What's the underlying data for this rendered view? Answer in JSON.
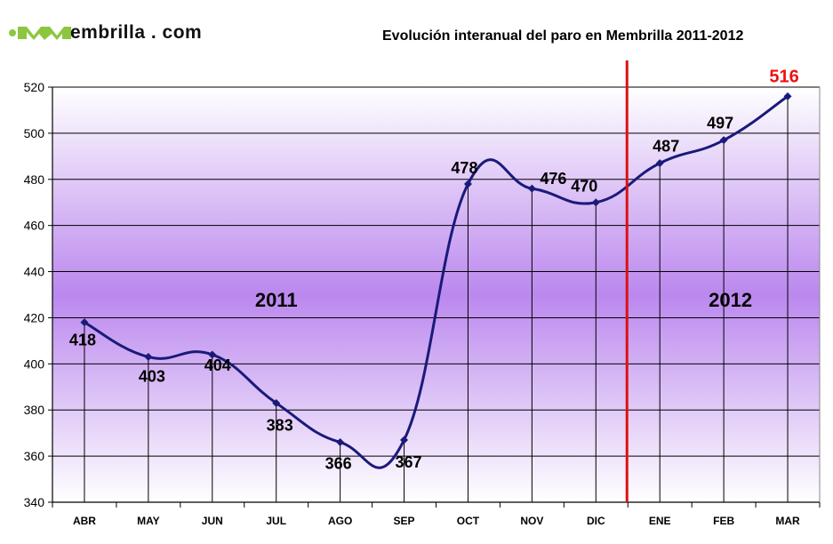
{
  "logo": {
    "text": "embrilla . com",
    "mark_icon": "green-m-logo-icon",
    "mark_color": "#8cc63f"
  },
  "chart_data": {
    "type": "line",
    "title": "Evolución interanual del paro en Membrilla 2011-2012",
    "xlabel": "",
    "ylabel": "",
    "categories": [
      "ABR",
      "MAY",
      "JUN",
      "JUL",
      "AGO",
      "SEP",
      "OCT",
      "NOV",
      "DIC",
      "ENE",
      "FEB",
      "MAR"
    ],
    "series": [
      {
        "values": [
          418,
          403,
          404,
          383,
          366,
          367,
          478,
          476,
          470,
          487,
          497,
          516
        ]
      }
    ],
    "data_labels": [
      "418",
      "403",
      "404",
      "383",
      "366",
      "367",
      "478",
      "476",
      "470",
      "487",
      "497",
      "516"
    ],
    "highlight_index": 11,
    "ylim": [
      340,
      520
    ],
    "yticks": [
      "340",
      "360",
      "380",
      "400",
      "420",
      "440",
      "460",
      "480",
      "500",
      "520"
    ],
    "grid": true,
    "legend": "none",
    "year_labels": [
      "2011",
      "2012"
    ],
    "divider_after_category": "DIC",
    "colors": {
      "line": "#1a1a7a",
      "marker": "#1a1a7a",
      "divider": "#dd1111",
      "highlight_label": "#ee1111",
      "band_light": "#ffffff",
      "band_dark": "#bb88ee"
    }
  }
}
